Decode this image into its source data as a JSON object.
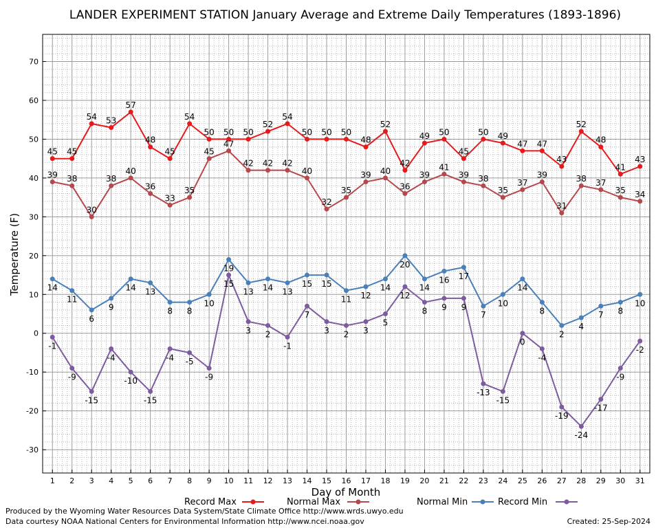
{
  "chart_data": {
    "type": "line",
    "title": "LANDER EXPERIMENT STATION January Average and Extreme Daily Temperatures (1893-1896)",
    "xlabel": "Day of Month",
    "ylabel": "Temperature (F)",
    "x": [
      1,
      2,
      3,
      4,
      5,
      6,
      7,
      8,
      9,
      10,
      11,
      12,
      13,
      14,
      15,
      16,
      17,
      18,
      19,
      20,
      21,
      22,
      23,
      24,
      25,
      26,
      27,
      28,
      29,
      30,
      31
    ],
    "xlim": [
      0.5,
      31.5
    ],
    "ylim": [
      -36,
      77
    ],
    "yticks": [
      -30,
      -20,
      -10,
      0,
      10,
      20,
      30,
      40,
      50,
      60,
      70
    ],
    "grid": true,
    "legend_placement": "bottom",
    "series": [
      {
        "name": "Record Max",
        "color": "#e41a1c",
        "values": [
          45,
          45,
          54,
          53,
          57,
          48,
          45,
          54,
          50,
          50,
          50,
          52,
          54,
          50,
          50,
          50,
          48,
          52,
          42,
          49,
          50,
          45,
          50,
          49,
          47,
          47,
          43,
          52,
          48,
          41,
          43
        ]
      },
      {
        "name": "Normal Max",
        "color": "#b5484d",
        "values": [
          39,
          38,
          30,
          38,
          40,
          36,
          33,
          35,
          45,
          47,
          42,
          42,
          42,
          40,
          32,
          35,
          39,
          40,
          36,
          39,
          41,
          39,
          38,
          35,
          37,
          39,
          31,
          38,
          37,
          35,
          34
        ]
      },
      {
        "name": "Normal Min",
        "color": "#4a80b8",
        "values": [
          14,
          11,
          6,
          9,
          14,
          13,
          8,
          8,
          10,
          19,
          13,
          14,
          13,
          15,
          15,
          11,
          12,
          14,
          20,
          14,
          16,
          17,
          7,
          10,
          14,
          8,
          2,
          4,
          7,
          8,
          10
        ]
      },
      {
        "name": "Record Min",
        "color": "#7d5b9e",
        "values": [
          -1,
          -9,
          -15,
          -4,
          -10,
          -15,
          -4,
          -5,
          -9,
          15,
          3,
          2,
          -1,
          7,
          3,
          2,
          3,
          5,
          12,
          8,
          9,
          9,
          -13,
          -15,
          0,
          -4,
          -19,
          -24,
          -17,
          -9,
          -2
        ]
      }
    ]
  },
  "footer": {
    "credit1": "Produced by the Wyoming Water Resources Data System/State Climate Office http://www.wrds.uwyo.edu",
    "credit2": "Data courtesy NOAA National Centers for Environmental Information http://www.ncei.noaa.gov",
    "created": "Created:  25-Sep-2024"
  }
}
